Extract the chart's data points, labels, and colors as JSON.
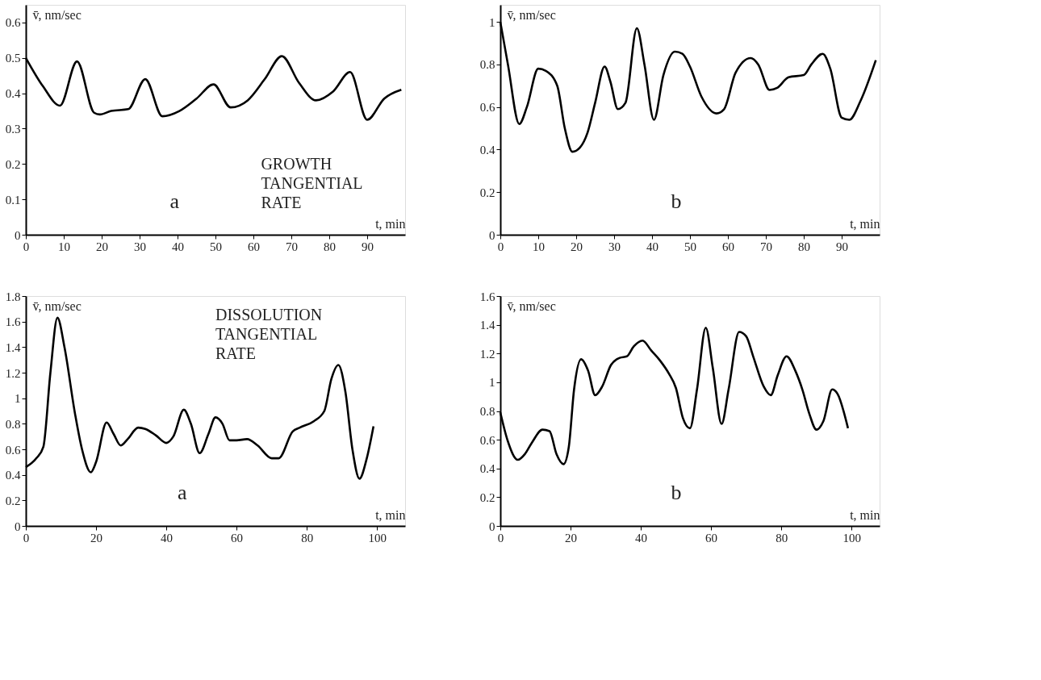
{
  "chart_data": [
    {
      "type": "line",
      "xlabel": "t, min",
      "ylabel": "v̄, nm/sec",
      "annotations": [
        "a",
        "GROWTH TANGENTIAL RATE"
      ],
      "xlim": [
        0,
        100
      ],
      "xticks": [
        0,
        10,
        20,
        30,
        40,
        50,
        60,
        70,
        80,
        90
      ],
      "ylim": [
        0,
        0.65
      ],
      "yticks": [
        0,
        0.1,
        0.2,
        0.3,
        0.4,
        0.5,
        0.6
      ],
      "grid": false,
      "series": [
        {
          "color": "#000000",
          "x": [
            0,
            4.5,
            9,
            13.5,
            18,
            19.5,
            22.5,
            27,
            31.5,
            36,
            40.5,
            45,
            49.5,
            54,
            58.5,
            63,
            67.5,
            72,
            76.5,
            81,
            85.5,
            90,
            94.5,
            99
          ],
          "values": [
            0.5,
            0.42,
            0.365,
            0.49,
            0.345,
            0.34,
            0.35,
            0.355,
            0.44,
            0.335,
            0.35,
            0.385,
            0.425,
            0.36,
            0.38,
            0.44,
            0.505,
            0.43,
            0.38,
            0.405,
            0.46,
            0.325,
            0.385,
            0.41
          ]
        }
      ]
    },
    {
      "type": "line",
      "xlabel": "t, min",
      "ylabel": "v̄, nm/sec",
      "annotations": [
        "b"
      ],
      "xlim": [
        0,
        100
      ],
      "xticks": [
        0,
        10,
        20,
        30,
        40,
        50,
        60,
        70,
        80,
        90
      ],
      "ylim": [
        0,
        1.08
      ],
      "yticks": [
        0,
        0.2,
        0.4,
        0.6,
        0.8,
        1
      ],
      "grid": false,
      "series": [
        {
          "color": "#000000",
          "x": [
            0,
            2,
            5,
            7,
            10,
            12,
            15,
            17,
            19,
            21,
            23,
            25,
            27.5,
            29,
            31,
            33,
            36,
            38,
            40.5,
            43,
            46,
            48,
            50,
            53,
            57,
            59,
            62,
            66,
            68,
            71,
            73,
            76,
            80,
            82,
            85,
            87,
            90,
            92,
            95,
            99
          ],
          "values": [
            1.0,
            0.8,
            0.52,
            0.6,
            0.78,
            0.77,
            0.7,
            0.5,
            0.39,
            0.41,
            0.48,
            0.62,
            0.79,
            0.72,
            0.59,
            0.62,
            0.97,
            0.8,
            0.54,
            0.75,
            0.86,
            0.85,
            0.79,
            0.65,
            0.57,
            0.59,
            0.76,
            0.83,
            0.8,
            0.68,
            0.69,
            0.74,
            0.75,
            0.8,
            0.85,
            0.78,
            0.55,
            0.54,
            0.63,
            0.82
          ]
        }
      ]
    },
    {
      "type": "line",
      "xlabel": "t, min",
      "ylabel": "v̄, nm/sec",
      "annotations": [
        "a",
        "DISSOLUTION TANGENTIAL RATE"
      ],
      "xlim": [
        0,
        108
      ],
      "xticks": [
        0,
        20,
        40,
        60,
        80,
        100
      ],
      "ylim": [
        0,
        1.8
      ],
      "yticks": [
        0,
        0.2,
        0.4,
        0.6,
        0.8,
        1,
        1.2,
        1.4,
        1.6,
        1.8
      ],
      "grid": false,
      "series": [
        {
          "color": "#000000",
          "x": [
            0,
            3,
            5,
            7,
            9,
            11,
            14,
            16,
            18.5,
            20,
            23,
            25,
            27,
            29,
            32,
            34,
            37,
            40,
            42,
            45,
            47,
            49.5,
            52,
            54,
            56,
            58,
            60,
            63,
            66,
            70,
            72,
            76,
            78,
            82,
            85,
            87,
            89,
            91,
            93,
            95,
            97,
            99
          ],
          "values": [
            0.46,
            0.53,
            0.62,
            1.2,
            1.63,
            1.4,
            0.88,
            0.6,
            0.42,
            0.5,
            0.81,
            0.72,
            0.63,
            0.68,
            0.77,
            0.76,
            0.71,
            0.65,
            0.7,
            0.91,
            0.8,
            0.57,
            0.72,
            0.85,
            0.8,
            0.67,
            0.67,
            0.68,
            0.63,
            0.53,
            0.53,
            0.74,
            0.77,
            0.82,
            0.9,
            1.15,
            1.26,
            1.05,
            0.6,
            0.37,
            0.52,
            0.78
          ]
        }
      ]
    },
    {
      "type": "line",
      "xlabel": "t, min",
      "ylabel": "v̄, nm/sec",
      "annotations": [
        "b"
      ],
      "xlim": [
        0,
        108
      ],
      "xticks": [
        0,
        20,
        40,
        60,
        80,
        100
      ],
      "ylim": [
        0,
        1.6
      ],
      "yticks": [
        0,
        0.2,
        0.4,
        0.6,
        0.8,
        1,
        1.2,
        1.4,
        1.6
      ],
      "grid": false,
      "series": [
        {
          "color": "#000000",
          "x": [
            0,
            2,
            5,
            7,
            9,
            12,
            14,
            16,
            18,
            19.5,
            21,
            23,
            25,
            27,
            29,
            31.5,
            34,
            36,
            38,
            40.5,
            43,
            45.5,
            48,
            50,
            52,
            54,
            56,
            58.5,
            60.5,
            63,
            65,
            68,
            70,
            72,
            75,
            77,
            79,
            81.5,
            84,
            86,
            88,
            90,
            92,
            94.5,
            96,
            99
          ],
          "values": [
            0.79,
            0.6,
            0.46,
            0.5,
            0.58,
            0.67,
            0.66,
            0.5,
            0.43,
            0.55,
            0.95,
            1.16,
            1.08,
            0.91,
            0.97,
            1.12,
            1.17,
            1.18,
            1.25,
            1.29,
            1.22,
            1.15,
            1.06,
            0.96,
            0.75,
            0.68,
            0.95,
            1.38,
            1.1,
            0.71,
            0.95,
            1.35,
            1.32,
            1.18,
            0.97,
            0.91,
            1.05,
            1.18,
            1.08,
            0.95,
            0.78,
            0.67,
            0.73,
            0.95,
            0.92,
            0.68
          ]
        }
      ]
    }
  ]
}
